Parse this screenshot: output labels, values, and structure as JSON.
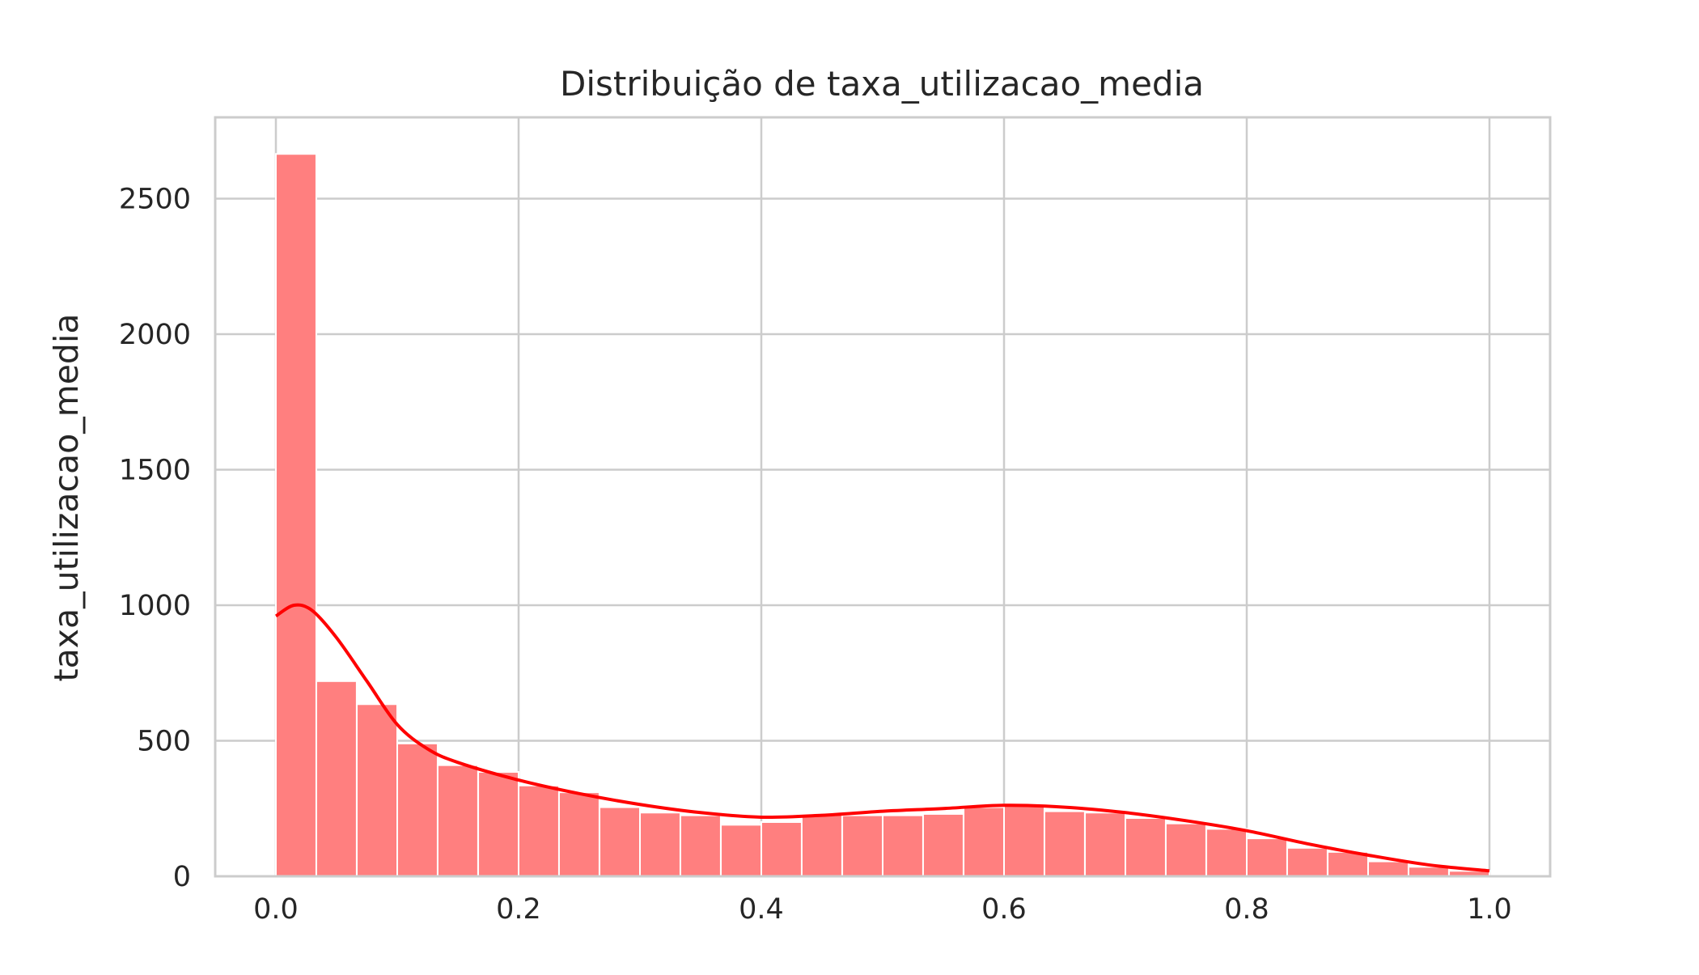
{
  "chart_data": {
    "type": "bar",
    "title": "Distribuição de taxa_utilizacao_media",
    "xlabel": "",
    "ylabel": "taxa_utilizacao_media",
    "xlim": [
      -0.05,
      1.05
    ],
    "ylim": [
      0,
      2800
    ],
    "grid": true,
    "bin_width": 0.0333,
    "bins": [
      {
        "x0": 0.0,
        "count": 2665
      },
      {
        "x0": 0.0333,
        "count": 720
      },
      {
        "x0": 0.0667,
        "count": 635
      },
      {
        "x0": 0.1,
        "count": 490
      },
      {
        "x0": 0.1333,
        "count": 410
      },
      {
        "x0": 0.1667,
        "count": 385
      },
      {
        "x0": 0.2,
        "count": 335
      },
      {
        "x0": 0.2333,
        "count": 310
      },
      {
        "x0": 0.2667,
        "count": 255
      },
      {
        "x0": 0.3,
        "count": 235
      },
      {
        "x0": 0.3333,
        "count": 225
      },
      {
        "x0": 0.3667,
        "count": 190
      },
      {
        "x0": 0.4,
        "count": 200
      },
      {
        "x0": 0.4333,
        "count": 230
      },
      {
        "x0": 0.4667,
        "count": 225
      },
      {
        "x0": 0.5,
        "count": 225
      },
      {
        "x0": 0.5333,
        "count": 230
      },
      {
        "x0": 0.5667,
        "count": 255
      },
      {
        "x0": 0.6,
        "count": 265
      },
      {
        "x0": 0.6333,
        "count": 240
      },
      {
        "x0": 0.6667,
        "count": 235
      },
      {
        "x0": 0.7,
        "count": 215
      },
      {
        "x0": 0.7333,
        "count": 195
      },
      {
        "x0": 0.7667,
        "count": 175
      },
      {
        "x0": 0.8,
        "count": 140
      },
      {
        "x0": 0.8333,
        "count": 105
      },
      {
        "x0": 0.8667,
        "count": 90
      },
      {
        "x0": 0.9,
        "count": 55
      },
      {
        "x0": 0.9333,
        "count": 35
      },
      {
        "x0": 0.9667,
        "count": 20
      }
    ],
    "kde": {
      "x": [
        0.0,
        0.015,
        0.03,
        0.05,
        0.075,
        0.1,
        0.125,
        0.15,
        0.2,
        0.25,
        0.3,
        0.35,
        0.4,
        0.45,
        0.5,
        0.55,
        0.6,
        0.65,
        0.7,
        0.75,
        0.8,
        0.85,
        0.9,
        0.95,
        1.0
      ],
      "y": [
        960,
        1000,
        980,
        880,
        720,
        560,
        470,
        420,
        355,
        305,
        265,
        235,
        218,
        225,
        240,
        250,
        262,
        255,
        235,
        205,
        168,
        120,
        78,
        42,
        20
      ]
    },
    "x_ticks": [
      {
        "value": 0.0,
        "label": "0.0"
      },
      {
        "value": 0.2,
        "label": "0.2"
      },
      {
        "value": 0.4,
        "label": "0.4"
      },
      {
        "value": 0.6,
        "label": "0.6"
      },
      {
        "value": 0.8,
        "label": "0.8"
      },
      {
        "value": 1.0,
        "label": "1.0"
      }
    ],
    "y_ticks": [
      {
        "value": 0,
        "label": "0"
      },
      {
        "value": 500,
        "label": "500"
      },
      {
        "value": 1000,
        "label": "1000"
      },
      {
        "value": 1500,
        "label": "1500"
      },
      {
        "value": 2000,
        "label": "2000"
      },
      {
        "value": 2500,
        "label": "2500"
      }
    ],
    "colors": {
      "bar_fill": "#ff7f7f",
      "bar_edge": "#ffffff",
      "kde_line": "#ff0000",
      "grid": "#cccccc",
      "spine": "#cccccc",
      "text": "#262626"
    }
  }
}
